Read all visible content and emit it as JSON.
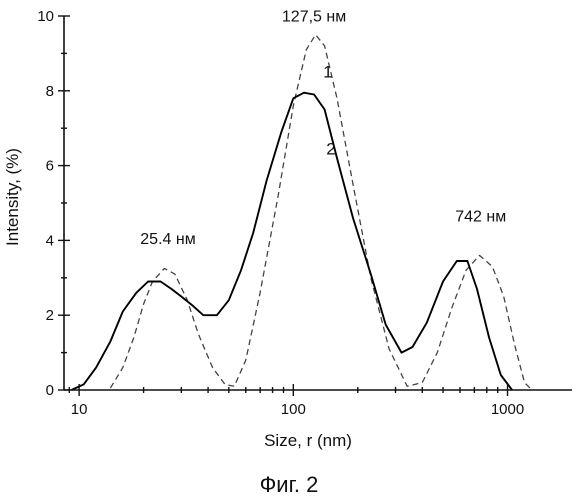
{
  "chart_data": {
    "type": "line",
    "xlabel": "Size, r (nm)",
    "ylabel": "Intensity, (%)",
    "x_scale": "log",
    "xlim": [
      8.5,
      2000
    ],
    "ylim": [
      0,
      10
    ],
    "x_ticks": [
      10,
      100,
      1000
    ],
    "x_tick_labels": [
      "10",
      "100",
      "1000"
    ],
    "y_ticks": [
      0,
      2,
      4,
      6,
      8,
      10
    ],
    "y_tick_labels": [
      "0",
      "2",
      "4",
      "6",
      "8",
      "10"
    ],
    "grid": false,
    "series": [
      {
        "name": "1",
        "style": "dashed",
        "color": "#444444",
        "x": [
          14,
          16,
          18,
          20,
          22,
          25,
          28,
          32,
          36,
          42,
          48,
          53,
          60,
          70,
          85,
          100,
          115,
          127,
          140,
          160,
          190,
          230,
          280,
          340,
          400,
          470,
          550,
          640,
          740,
          850,
          960,
          1080,
          1200,
          1300
        ],
        "y": [
          0.05,
          0.6,
          1.4,
          2.3,
          2.9,
          3.25,
          3.1,
          2.4,
          1.5,
          0.6,
          0.15,
          0.1,
          0.8,
          2.6,
          5.2,
          7.6,
          9.1,
          9.5,
          9.2,
          7.8,
          5.5,
          3.0,
          1.1,
          0.1,
          0.2,
          1.0,
          2.2,
          3.2,
          3.6,
          3.3,
          2.5,
          1.2,
          0.2,
          0.0
        ]
      },
      {
        "name": "2",
        "style": "solid",
        "color": "#000000",
        "x": [
          9.2,
          10.5,
          12,
          14,
          16,
          18.5,
          21,
          24,
          27,
          30,
          34,
          38,
          44,
          50,
          57,
          65,
          75,
          88,
          100,
          112,
          125,
          140,
          160,
          190,
          230,
          270,
          320,
          360,
          420,
          500,
          580,
          650,
          720,
          820,
          930,
          1050
        ],
        "y": [
          0.0,
          0.15,
          0.6,
          1.3,
          2.1,
          2.6,
          2.9,
          2.9,
          2.7,
          2.5,
          2.25,
          2.0,
          2.0,
          2.4,
          3.2,
          4.2,
          5.6,
          6.9,
          7.8,
          7.95,
          7.9,
          7.5,
          6.2,
          4.6,
          3.1,
          1.75,
          1.0,
          1.15,
          1.8,
          2.9,
          3.45,
          3.45,
          2.7,
          1.4,
          0.4,
          0.0
        ]
      }
    ],
    "annotations": [
      {
        "text": "25.4 нм",
        "x": 26,
        "y": 3.9
      },
      {
        "text": "127,5 нм",
        "x": 125,
        "y": 9.85
      },
      {
        "text": "742 нм",
        "x": 750,
        "y": 4.5
      },
      {
        "text": "1",
        "x": 145,
        "y": 8.35
      },
      {
        "text": "2",
        "x": 150,
        "y": 6.3
      }
    ]
  },
  "caption": "Фиг. 2"
}
